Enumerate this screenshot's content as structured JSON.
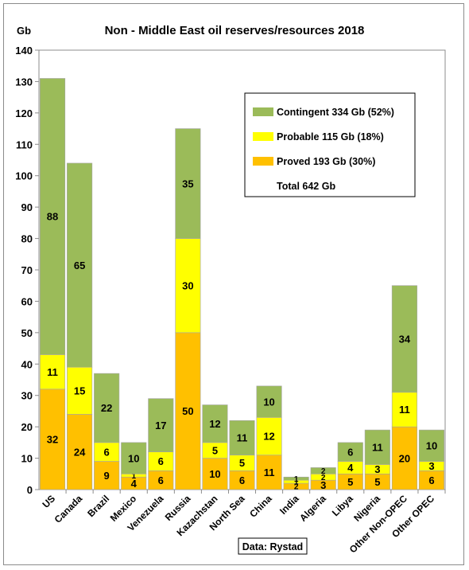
{
  "chart_data": {
    "type": "bar",
    "stacked": true,
    "title": "Non - Middle East oil reserves/resources 2018",
    "ylabel": "Gb",
    "ylim": [
      0,
      140
    ],
    "yticks": [
      0,
      10,
      20,
      30,
      40,
      50,
      60,
      70,
      80,
      90,
      100,
      110,
      120,
      130,
      140
    ],
    "grid": false,
    "categories": [
      "US",
      "Canada",
      "Brazil",
      "Mexico",
      "Venezuela",
      "Russia",
      "Kazachstan",
      "North Sea",
      "China",
      "India",
      "Algeria",
      "Libya",
      "Nigeria",
      "Other Non-OPEC",
      "Other OPEC"
    ],
    "series": [
      {
        "name": "Proved 193 Gb (30%)",
        "color": "#ffc000",
        "values": [
          32,
          24,
          9,
          4,
          6,
          50,
          10,
          6,
          11,
          2,
          3,
          5,
          5,
          20,
          6
        ]
      },
      {
        "name": "Probable 115 Gb (18%)",
        "color": "#ffff00",
        "values": [
          11,
          15,
          6,
          1,
          6,
          30,
          5,
          5,
          12,
          1,
          2,
          4,
          3,
          11,
          3
        ]
      },
      {
        "name": "Contingent 334 Gb (52%)",
        "color": "#9bbb59",
        "values": [
          88,
          65,
          22,
          10,
          17,
          35,
          12,
          11,
          10,
          1,
          2,
          6,
          11,
          34,
          10
        ]
      }
    ],
    "legend": {
      "position": "top-right",
      "items": [
        "Contingent 334 Gb (52%)",
        "Probable 115 Gb (18%)",
        "Proved 193 Gb (30%)"
      ],
      "total": "Total 642 Gb"
    },
    "source": "Data: Rystad"
  }
}
